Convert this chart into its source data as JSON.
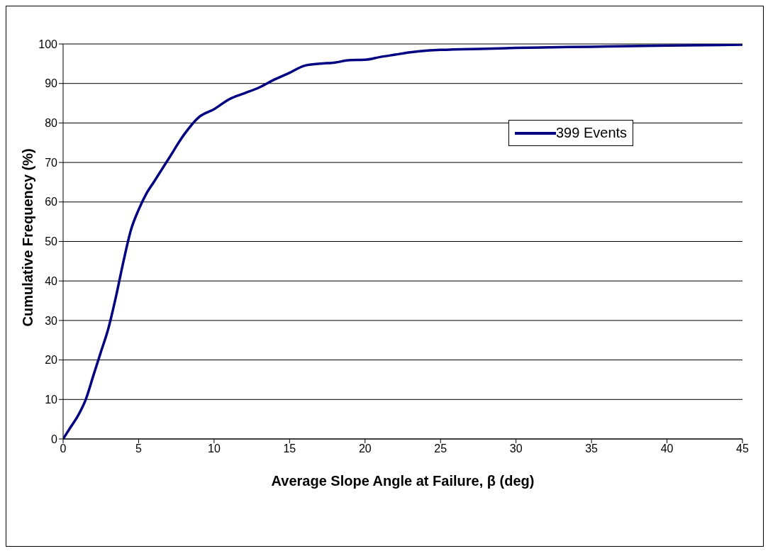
{
  "chart_data": {
    "type": "line",
    "xlabel": "Average Slope Angle at Failure, β (deg)",
    "ylabel": "Cumulative Frequency (%)",
    "x": [
      0,
      0.5,
      1,
      1.5,
      2,
      2.5,
      3,
      3.5,
      4,
      4.5,
      5,
      5.5,
      6,
      7,
      8,
      9,
      10,
      11,
      12,
      13,
      14,
      15,
      16,
      17,
      18,
      19,
      20,
      21,
      22,
      23,
      24,
      25,
      28,
      30,
      35,
      40,
      45
    ],
    "series": [
      {
        "name": "399 Events",
        "color": "#000080",
        "values": [
          0,
          3,
          6,
          10,
          16,
          22,
          28,
          36,
          45,
          53,
          58,
          62,
          65,
          71,
          77,
          81.5,
          83.5,
          86,
          87.5,
          89,
          91,
          92.7,
          94.5,
          95,
          95.3,
          95.9,
          96,
          96.7,
          97.3,
          97.9,
          98.3,
          98.5,
          98.8,
          99,
          99.3,
          99.6,
          99.8
        ]
      }
    ],
    "xlim": [
      0,
      45
    ],
    "xticks": [
      0,
      5,
      10,
      15,
      20,
      25,
      30,
      35,
      40,
      45
    ],
    "ylim": [
      0,
      100
    ],
    "yticks": [
      0,
      10,
      20,
      30,
      40,
      50,
      60,
      70,
      80,
      90,
      100
    ],
    "grid": "y",
    "legend": "top right",
    "marker": "none",
    "line_style": "solid"
  }
}
